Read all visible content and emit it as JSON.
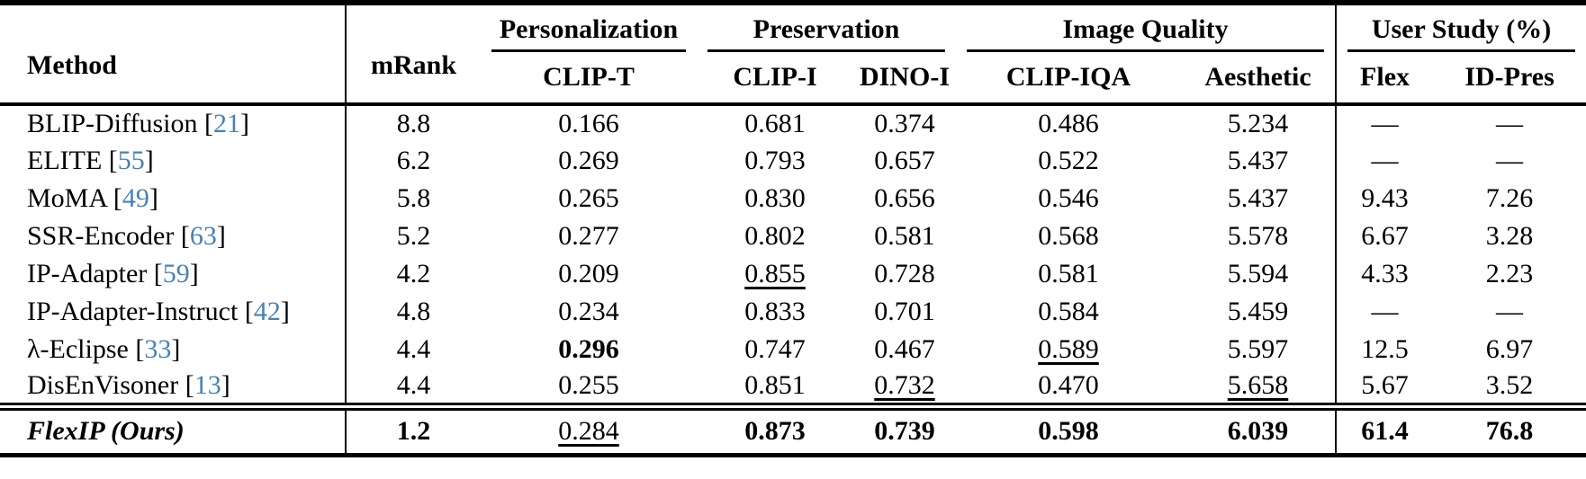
{
  "colors": {
    "citation_blue": "#4682b4",
    "text": "#000000",
    "rule": "#000000"
  },
  "table": {
    "header": {
      "method": "Method",
      "mrank": "mRank",
      "groups": [
        {
          "label": "Personalization",
          "cols": [
            "CLIP-T"
          ]
        },
        {
          "label": "Preservation",
          "cols": [
            "CLIP-I",
            "DINO-I"
          ]
        },
        {
          "label": "Image Quality",
          "cols": [
            "CLIP-IQA",
            "Aesthetic"
          ]
        },
        {
          "label": "User Study (%)",
          "cols": [
            "Flex",
            "ID-Pres"
          ]
        }
      ]
    },
    "rows": [
      {
        "method": "BLIP-Diffusion",
        "cite": "21",
        "values": [
          {
            "text": "8.8"
          },
          {
            "text": "0.166"
          },
          {
            "text": "0.681"
          },
          {
            "text": "0.374"
          },
          {
            "text": "0.486"
          },
          {
            "text": "5.234"
          },
          {
            "text": "—"
          },
          {
            "text": "—"
          }
        ]
      },
      {
        "method": "ELITE",
        "cite": "55",
        "values": [
          {
            "text": "6.2"
          },
          {
            "text": "0.269"
          },
          {
            "text": "0.793"
          },
          {
            "text": "0.657"
          },
          {
            "text": "0.522"
          },
          {
            "text": "5.437"
          },
          {
            "text": "—"
          },
          {
            "text": "—"
          }
        ]
      },
      {
        "method": "MoMA",
        "cite": "49",
        "values": [
          {
            "text": "5.8"
          },
          {
            "text": "0.265"
          },
          {
            "text": "0.830"
          },
          {
            "text": "0.656"
          },
          {
            "text": "0.546"
          },
          {
            "text": "5.437"
          },
          {
            "text": "9.43"
          },
          {
            "text": "7.26"
          }
        ]
      },
      {
        "method": "SSR-Encoder",
        "cite": "63",
        "values": [
          {
            "text": "5.2"
          },
          {
            "text": "0.277"
          },
          {
            "text": "0.802"
          },
          {
            "text": "0.581"
          },
          {
            "text": "0.568"
          },
          {
            "text": "5.578"
          },
          {
            "text": "6.67"
          },
          {
            "text": "3.28"
          }
        ]
      },
      {
        "method": "IP-Adapter",
        "cite": "59",
        "values": [
          {
            "text": "4.2"
          },
          {
            "text": "0.209"
          },
          {
            "text": "0.855",
            "underline": true
          },
          {
            "text": "0.728"
          },
          {
            "text": "0.581"
          },
          {
            "text": "5.594"
          },
          {
            "text": "4.33"
          },
          {
            "text": "2.23"
          }
        ]
      },
      {
        "method": "IP-Adapter-Instruct",
        "cite": "42",
        "values": [
          {
            "text": "4.8"
          },
          {
            "text": "0.234"
          },
          {
            "text": "0.833"
          },
          {
            "text": "0.701"
          },
          {
            "text": "0.584"
          },
          {
            "text": "5.459"
          },
          {
            "text": "—"
          },
          {
            "text": "—"
          }
        ]
      },
      {
        "method": "λ-Eclipse",
        "cite": "33",
        "values": [
          {
            "text": "4.4"
          },
          {
            "text": "0.296",
            "bold": true
          },
          {
            "text": "0.747"
          },
          {
            "text": "0.467"
          },
          {
            "text": "0.589",
            "underline": true
          },
          {
            "text": "5.597"
          },
          {
            "text": "12.5"
          },
          {
            "text": "6.97"
          }
        ]
      },
      {
        "method": "DisEnVisoner",
        "cite": "13",
        "values": [
          {
            "text": "4.4"
          },
          {
            "text": "0.255"
          },
          {
            "text": "0.851"
          },
          {
            "text": "0.732",
            "underline": true
          },
          {
            "text": "0.470"
          },
          {
            "text": "5.658",
            "underline": true
          },
          {
            "text": "5.67"
          },
          {
            "text": "3.52"
          }
        ]
      }
    ],
    "ours_row": {
      "method": "FlexIP (Ours)",
      "cite": null,
      "values": [
        {
          "text": "1.2",
          "bold": true
        },
        {
          "text": "0.284",
          "underline": true
        },
        {
          "text": "0.873",
          "bold": true
        },
        {
          "text": "0.739",
          "bold": true
        },
        {
          "text": "0.598",
          "bold": true
        },
        {
          "text": "6.039",
          "bold": true
        },
        {
          "text": "61.4",
          "bold": true
        },
        {
          "text": "76.8",
          "bold": true
        }
      ]
    }
  }
}
